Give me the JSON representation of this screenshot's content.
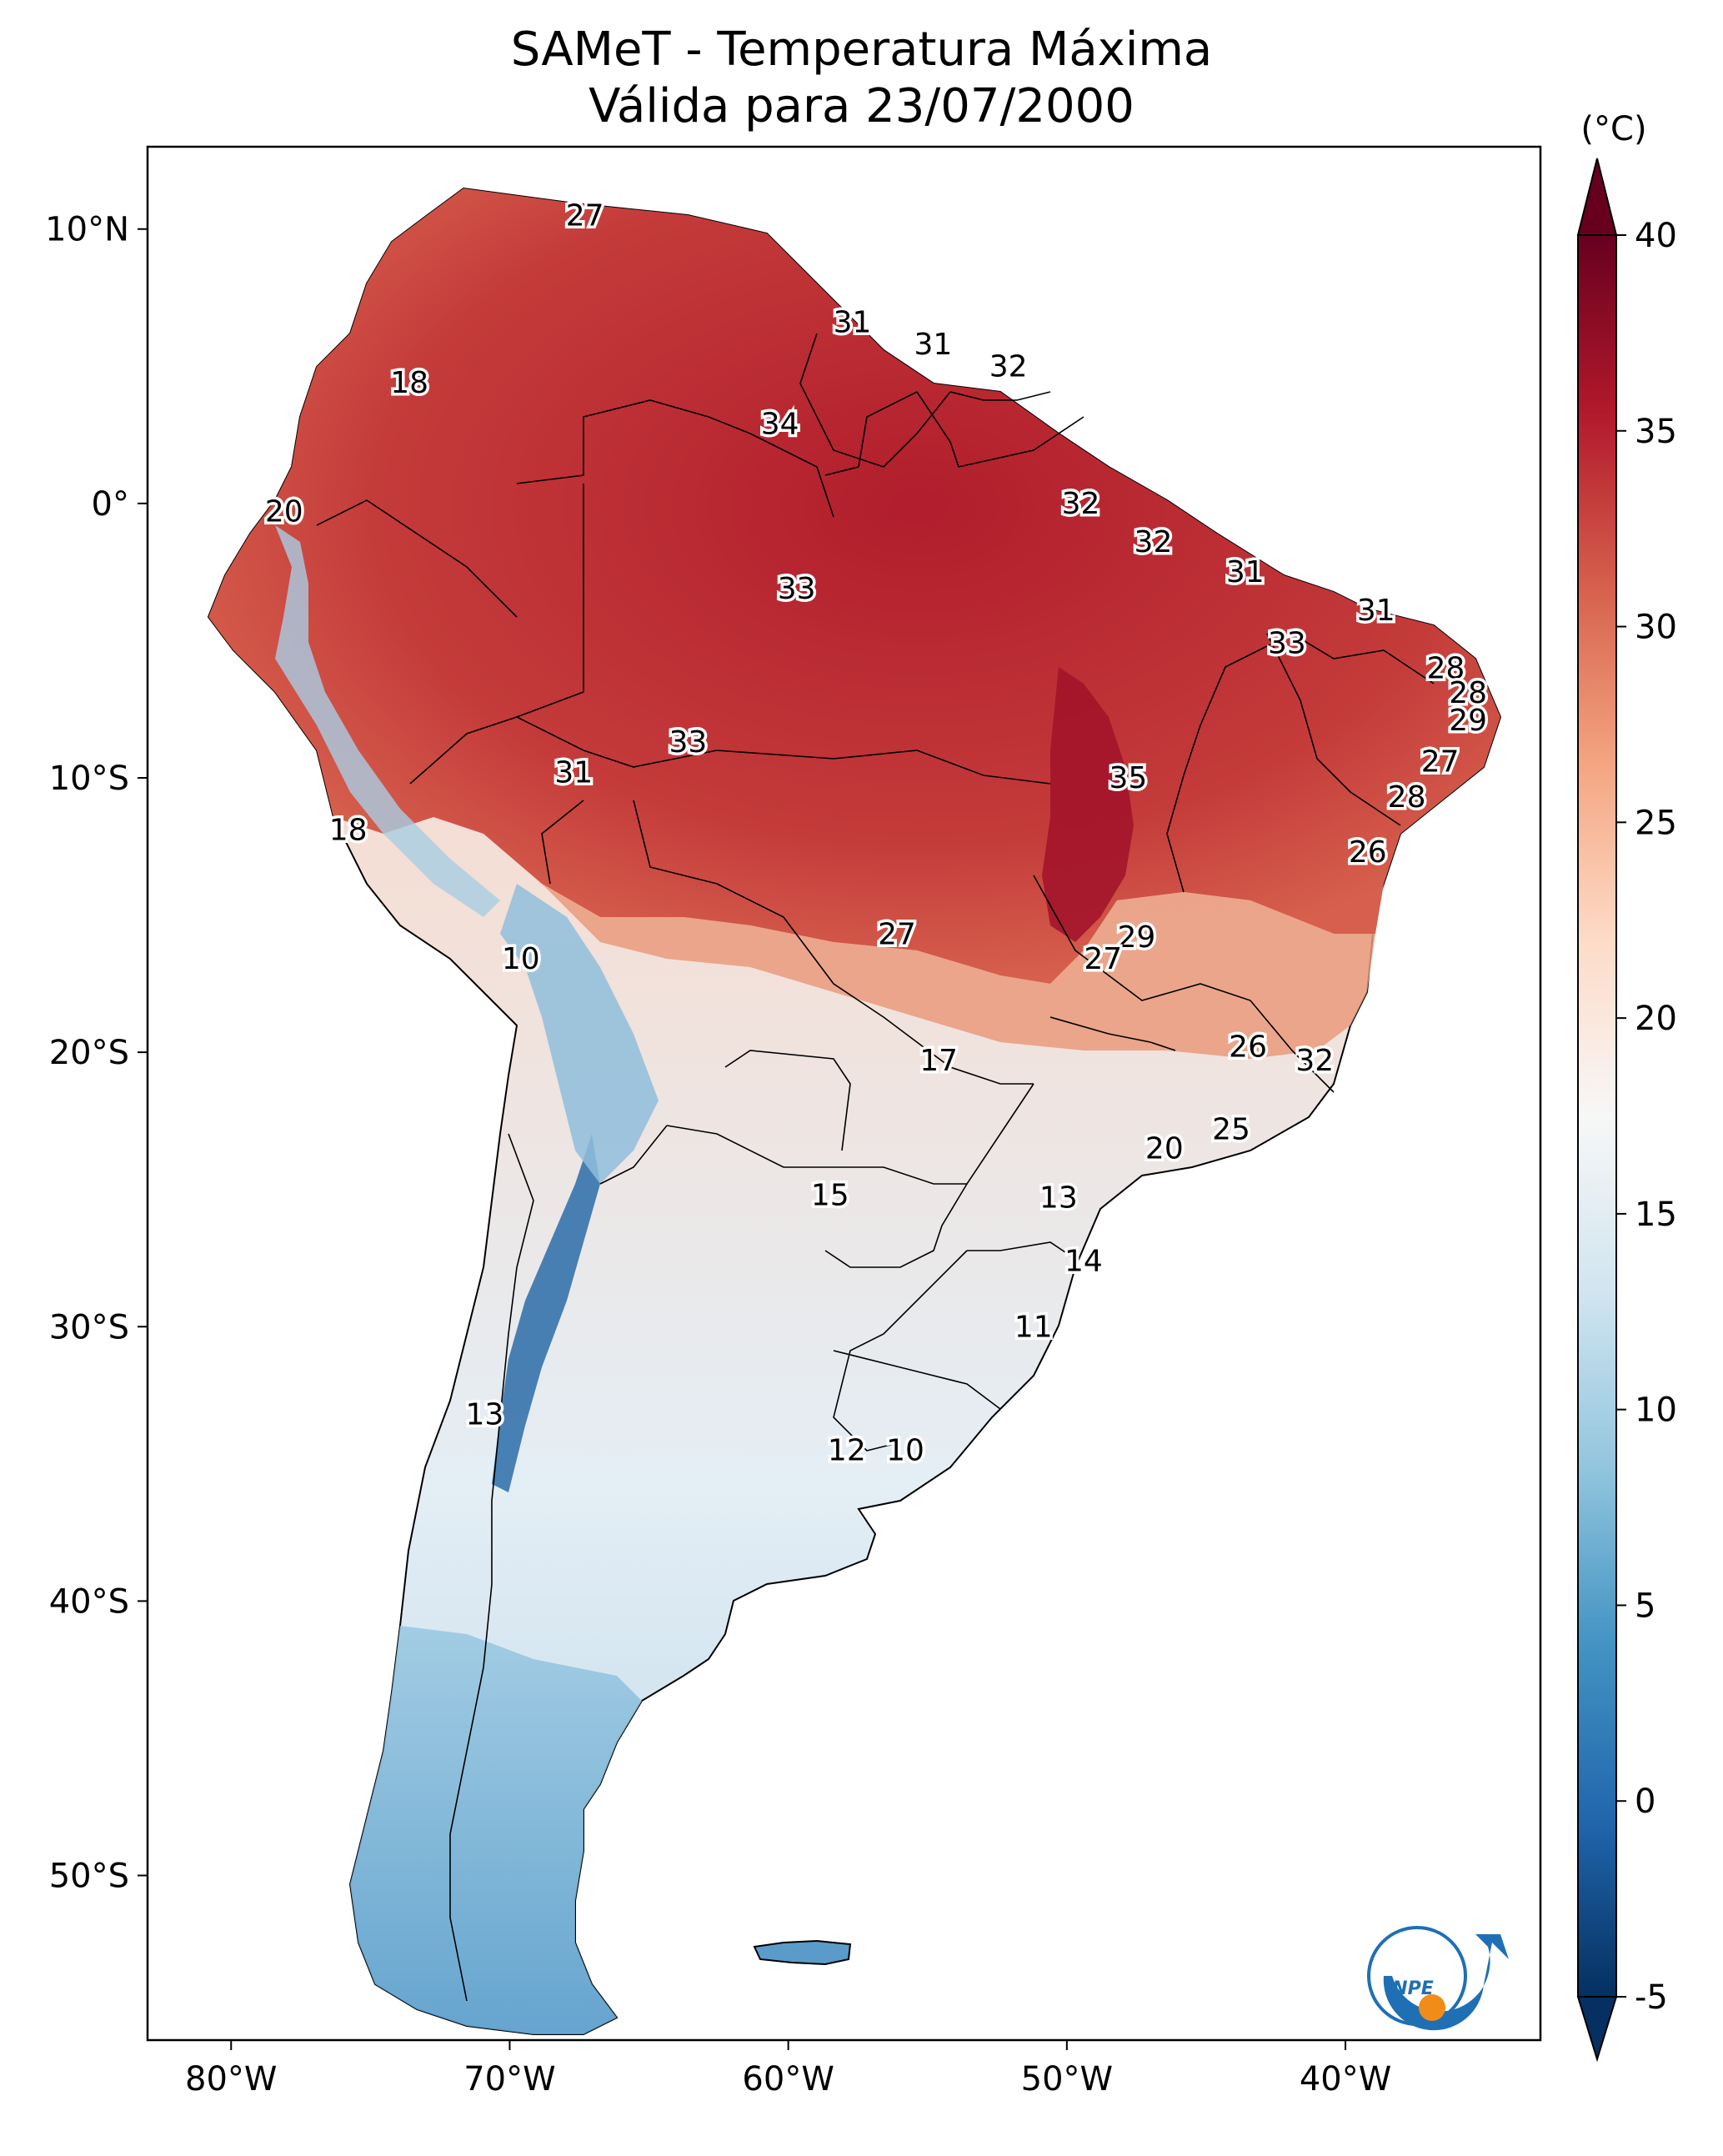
{
  "title": {
    "line1": "SAMeT - Temperatura Máxima",
    "line2": "Válida para 23/07/2000"
  },
  "map": {
    "lon_range": [
      -83,
      -33
    ],
    "lat_range": [
      -56,
      13
    ],
    "lon_ticks": [
      {
        "value": -80,
        "label": "80°W"
      },
      {
        "value": -70,
        "label": "70°W"
      },
      {
        "value": -60,
        "label": "60°W"
      },
      {
        "value": -50,
        "label": "50°W"
      },
      {
        "value": -40,
        "label": "40°W"
      }
    ],
    "lat_ticks": [
      {
        "value": 10,
        "label": "10°N"
      },
      {
        "value": 0,
        "label": "0°"
      },
      {
        "value": -10,
        "label": "10°S"
      },
      {
        "value": -20,
        "label": "20°S"
      },
      {
        "value": -30,
        "label": "30°S"
      },
      {
        "value": -40,
        "label": "40°S"
      },
      {
        "value": -50,
        "label": "50°S"
      }
    ],
    "contour_labels": [
      {
        "lon": -67.3,
        "lat": 10.5,
        "text": "27"
      },
      {
        "lon": -73.6,
        "lat": 4.4,
        "text": "18"
      },
      {
        "lon": -78.1,
        "lat": -0.3,
        "text": "20"
      },
      {
        "lon": -57.7,
        "lat": 6.6,
        "text": "31"
      },
      {
        "lon": -54.8,
        "lat": 5.8,
        "text": "31"
      },
      {
        "lon": -52.1,
        "lat": 5.0,
        "text": "32"
      },
      {
        "lon": -60.3,
        "lat": 2.9,
        "text": "34"
      },
      {
        "lon": -49.5,
        "lat": 0.0,
        "text": "32"
      },
      {
        "lon": -46.9,
        "lat": -1.4,
        "text": "32"
      },
      {
        "lon": -43.6,
        "lat": -2.5,
        "text": "31"
      },
      {
        "lon": -38.9,
        "lat": -3.9,
        "text": "31"
      },
      {
        "lon": -59.7,
        "lat": -3.1,
        "text": "33"
      },
      {
        "lon": -42.1,
        "lat": -5.1,
        "text": "33"
      },
      {
        "lon": -36.4,
        "lat": -6.0,
        "text": "28"
      },
      {
        "lon": -35.6,
        "lat": -6.9,
        "text": "28"
      },
      {
        "lon": -35.6,
        "lat": -7.9,
        "text": "29"
      },
      {
        "lon": -36.6,
        "lat": -9.4,
        "text": "27"
      },
      {
        "lon": -37.8,
        "lat": -10.7,
        "text": "28"
      },
      {
        "lon": -39.2,
        "lat": -12.7,
        "text": "26"
      },
      {
        "lon": -63.6,
        "lat": -8.7,
        "text": "33"
      },
      {
        "lon": -67.7,
        "lat": -9.8,
        "text": "31"
      },
      {
        "lon": -47.8,
        "lat": -10.0,
        "text": "35"
      },
      {
        "lon": -75.8,
        "lat": -11.9,
        "text": "18"
      },
      {
        "lon": -69.6,
        "lat": -16.6,
        "text": "10"
      },
      {
        "lon": -56.1,
        "lat": -15.7,
        "text": "27"
      },
      {
        "lon": -47.5,
        "lat": -15.8,
        "text": "29"
      },
      {
        "lon": -48.7,
        "lat": -16.6,
        "text": "27"
      },
      {
        "lon": -54.6,
        "lat": -20.3,
        "text": "17"
      },
      {
        "lon": -43.5,
        "lat": -19.8,
        "text": "26"
      },
      {
        "lon": -41.1,
        "lat": -20.3,
        "text": "32"
      },
      {
        "lon": -44.1,
        "lat": -22.8,
        "text": "25"
      },
      {
        "lon": -46.5,
        "lat": -23.5,
        "text": "20"
      },
      {
        "lon": -58.5,
        "lat": -25.2,
        "text": "15"
      },
      {
        "lon": -50.3,
        "lat": -25.3,
        "text": "13"
      },
      {
        "lon": -49.4,
        "lat": -27.6,
        "text": "14"
      },
      {
        "lon": -51.2,
        "lat": -30.0,
        "text": "11"
      },
      {
        "lon": -70.9,
        "lat": -33.2,
        "text": "13"
      },
      {
        "lon": -57.9,
        "lat": -34.5,
        "text": "12"
      },
      {
        "lon": -55.8,
        "lat": -34.5,
        "text": "10"
      }
    ]
  },
  "colorbar": {
    "unit_label": "(°C)",
    "min": -5,
    "max": 40,
    "ticks": [
      {
        "value": 40,
        "label": "40"
      },
      {
        "value": 35,
        "label": "35"
      },
      {
        "value": 30,
        "label": "30"
      },
      {
        "value": 25,
        "label": "25"
      },
      {
        "value": 20,
        "label": "20"
      },
      {
        "value": 15,
        "label": "15"
      },
      {
        "value": 10,
        "label": "10"
      },
      {
        "value": 5,
        "label": "5"
      },
      {
        "value": 0,
        "label": "0"
      },
      {
        "value": -5,
        "label": "-5"
      }
    ],
    "colors": [
      "#053061",
      "#2166ac",
      "#4393c3",
      "#92c5de",
      "#d1e5f0",
      "#f7f7f7",
      "#fddbc7",
      "#f4a582",
      "#d6604d",
      "#b2182b",
      "#67001f"
    ]
  },
  "logo": {
    "text": "INPE"
  }
}
